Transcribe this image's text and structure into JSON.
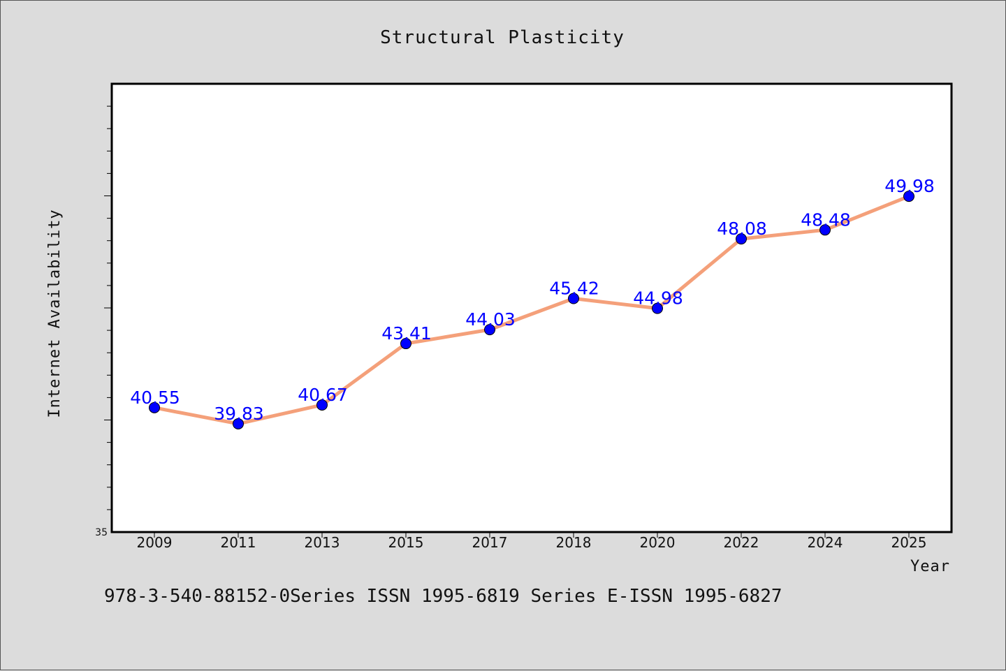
{
  "chart_data": {
    "type": "line",
    "title": "Structural Plasticity",
    "xlabel": "Year",
    "ylabel": "Internet Availability",
    "categories": [
      "2009",
      "2011",
      "2013",
      "2015",
      "2017",
      "2018",
      "2020",
      "2022",
      "2024",
      "2025"
    ],
    "series": [
      {
        "values": [
          40.55,
          39.83,
          40.67,
          43.41,
          44.03,
          45.42,
          44.98,
          48.08,
          48.48,
          49.98
        ],
        "labels": [
          "40.55",
          "39.83",
          "40.67",
          "43.41",
          "44.03",
          "45.42",
          "44.98",
          "48.08",
          "48.48",
          "49.98"
        ]
      }
    ],
    "ylim": [
      35,
      55
    ],
    "y_tick_labels_shown": [
      "35"
    ],
    "grid": false,
    "line_color": "#f4a07a",
    "marker_color": "#0000ff",
    "label_color": "#0000ff"
  },
  "footer_text": "978-3-540-88152-0Series ISSN 1995-6819 Series E-ISSN 1995-6827"
}
